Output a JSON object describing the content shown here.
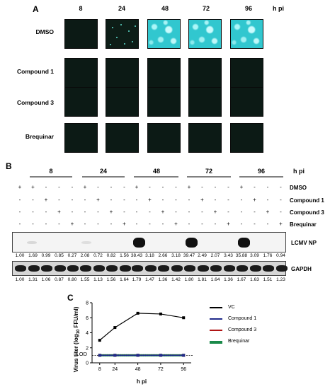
{
  "panel_a": {
    "letter": "A",
    "timepoints": [
      "8",
      "24",
      "48",
      "72",
      "96"
    ],
    "unit": "h pi",
    "rows": [
      "DMSO",
      "Compound 1",
      "Compound 3",
      "Brequinar"
    ]
  },
  "panel_b": {
    "letter": "B",
    "timepoints": [
      "8",
      "24",
      "48",
      "72",
      "96"
    ],
    "unit": "h pi",
    "treatments": [
      "DMSO",
      "Compound 1",
      "Compound 3",
      "Brequinar"
    ],
    "np_label": "LCMV NP",
    "gapdh_label": "GAPDH",
    "np_values": [
      "1.00",
      "1.69",
      "0.99",
      "0.85",
      "0.27",
      "2.08",
      "0.72",
      "0.82",
      "1.56",
      "38.43",
      "3.18",
      "2.66",
      "3.18",
      "39.47",
      "2.49",
      "2.07",
      "3.43",
      "35.88",
      "3.09",
      "1.76",
      "0.94"
    ],
    "gapdh_values": [
      "1.00",
      "1.31",
      "1.06",
      "0.87",
      "0.80",
      "1.55",
      "1.13",
      "1.56",
      "1.64",
      "1.79",
      "1.47",
      "1.36",
      "1.42",
      "1.80",
      "1.81",
      "1.64",
      "1.36",
      "1.67",
      "1.63",
      "1.51",
      "1.23"
    ]
  },
  "panel_c": {
    "letter": "C",
    "lod_label": "LOD",
    "ylabel": "Virus titer (log10 FFU/ml)",
    "xlabel": "h pi"
  },
  "chart_data": {
    "type": "line",
    "x": [
      8,
      24,
      48,
      72,
      96
    ],
    "xlabel": "h pi",
    "ylabel": "Virus titer (log10 FFU/ml)",
    "ylim": [
      0,
      8
    ],
    "yticks": [
      0,
      2,
      4,
      6,
      8
    ],
    "lod": 1,
    "legend_position": "right",
    "series": [
      {
        "name": "VC",
        "values": [
          3.0,
          4.7,
          6.6,
          6.5,
          6.0
        ],
        "color": "#000000"
      },
      {
        "name": "Compound 1",
        "values": [
          1,
          1,
          1,
          1,
          1
        ],
        "color": "#1f2a8a"
      },
      {
        "name": "Compound 3",
        "values": [
          1,
          1,
          1,
          1,
          1
        ],
        "color": "#b01515"
      },
      {
        "name": "Brequinar",
        "values": [
          1,
          1,
          1,
          1,
          1
        ],
        "color": "#1a8a4a"
      }
    ]
  }
}
